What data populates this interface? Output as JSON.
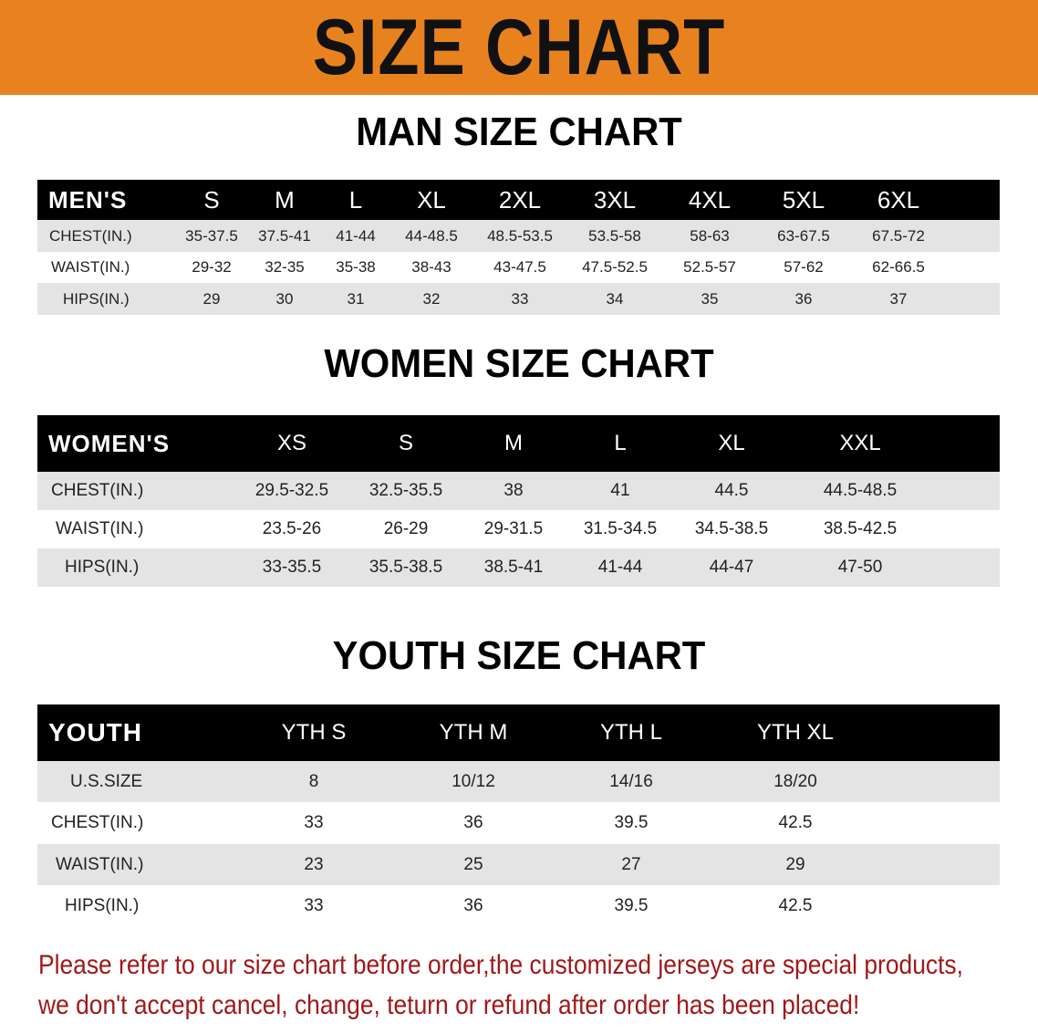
{
  "banner": {
    "title": "SIZE CHART",
    "color": "#e8821f"
  },
  "men": {
    "title": "MAN SIZE CHART",
    "header_label": "MEN'S",
    "sizes": [
      "S",
      "M",
      "L",
      "XL",
      "2XL",
      "3XL",
      "4XL",
      "5XL",
      "6XL"
    ],
    "rows": [
      {
        "label": "CHEST(IN.)",
        "values": [
          "35-37.5",
          "37.5-41",
          "41-44",
          "44-48.5",
          "48.5-53.5",
          "53.5-58",
          "58-63",
          "63-67.5",
          "67.5-72"
        ]
      },
      {
        "label": "WAIST(IN.)",
        "values": [
          "29-32",
          "32-35",
          "35-38",
          "38-43",
          "43-47.5",
          "47.5-52.5",
          "52.5-57",
          "57-62",
          "62-66.5"
        ]
      },
      {
        "label": "HIPS(IN.)",
        "values": [
          "29",
          "30",
          "31",
          "32",
          "33",
          "34",
          "35",
          "36",
          "37"
        ]
      }
    ]
  },
  "women": {
    "title": "WOMEN SIZE CHART",
    "header_label": "WOMEN'S",
    "sizes": [
      "XS",
      "S",
      "M",
      "L",
      "XL",
      "XXL"
    ],
    "rows": [
      {
        "label": "CHEST(IN.)",
        "values": [
          "29.5-32.5",
          "32.5-35.5",
          "38",
          "41",
          "44.5",
          "44.5-48.5"
        ]
      },
      {
        "label": "WAIST(IN.)",
        "values": [
          "23.5-26",
          "26-29",
          "29-31.5",
          "31.5-34.5",
          "34.5-38.5",
          "38.5-42.5"
        ]
      },
      {
        "label": "HIPS(IN.)",
        "values": [
          "33-35.5",
          "35.5-38.5",
          "38.5-41",
          "41-44",
          "44-47",
          "47-50"
        ]
      }
    ]
  },
  "youth": {
    "title": "YOUTH SIZE CHART",
    "header_label": "YOUTH",
    "sizes": [
      "YTH S",
      "YTH M",
      "YTH L",
      "YTH XL"
    ],
    "rows": [
      {
        "label": "U.S.SIZE",
        "values": [
          "8",
          "10/12",
          "14/16",
          "18/20"
        ]
      },
      {
        "label": "CHEST(IN.)",
        "values": [
          "33",
          "36",
          "39.5",
          "42.5"
        ]
      },
      {
        "label": "WAIST(IN.)",
        "values": [
          "23",
          "25",
          "27",
          "29"
        ]
      },
      {
        "label": "HIPS(IN.)",
        "values": [
          "33",
          "36",
          "39.5",
          "42.5"
        ]
      }
    ]
  },
  "notice": {
    "line1": "Please refer to our size chart before order,the customized jerseys are special products,",
    "line2": "we don't accept cancel, change, teturn or refund after order has been placed!",
    "color": "#a01818"
  }
}
